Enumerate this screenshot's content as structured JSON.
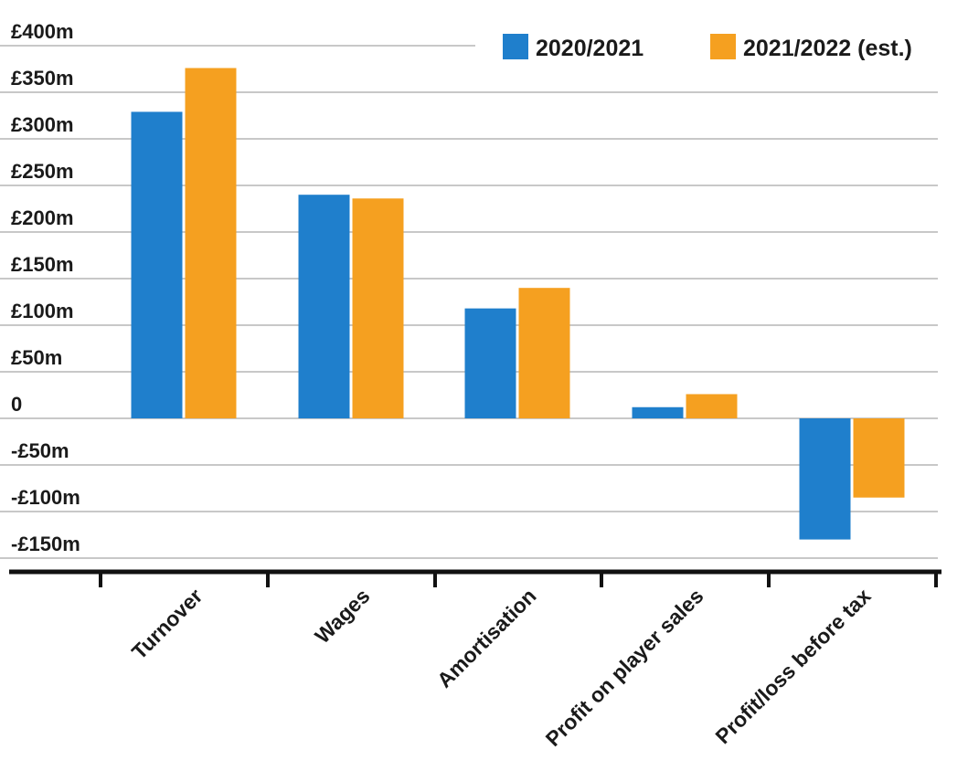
{
  "chart_data": {
    "type": "bar",
    "categories": [
      "Turnover",
      "Wages",
      "Amortisation",
      "Profit on player sales",
      "Profit/loss before tax"
    ],
    "series": [
      {
        "name": "2020/2021",
        "values": [
          329,
          240,
          118,
          12,
          -130
        ],
        "color": "#1f7fcc"
      },
      {
        "name": "2021/2022 (est.)",
        "values": [
          376,
          236,
          140,
          26,
          -85
        ],
        "color": "#f5a020"
      }
    ],
    "y_ticks": [
      {
        "value": 400,
        "label": "£400m"
      },
      {
        "value": 350,
        "label": "£350m"
      },
      {
        "value": 300,
        "label": "£300m"
      },
      {
        "value": 250,
        "label": "£250m"
      },
      {
        "value": 200,
        "label": "£200m"
      },
      {
        "value": 150,
        "label": "£150m"
      },
      {
        "value": 100,
        "label": "£100m"
      },
      {
        "value": 50,
        "label": "£50m"
      },
      {
        "value": 0,
        "label": "0"
      },
      {
        "value": -50,
        "label": "-£50m"
      },
      {
        "value": -100,
        "label": "-£100m"
      },
      {
        "value": -150,
        "label": "-£150m"
      }
    ],
    "ylim": [
      -150,
      400
    ],
    "grid": true,
    "legend": "top-right",
    "title": "",
    "xlabel": "",
    "ylabel": ""
  }
}
